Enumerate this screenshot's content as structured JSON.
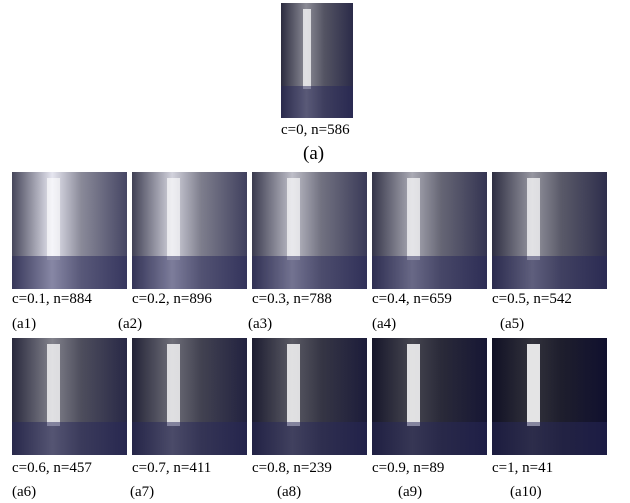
{
  "top": {
    "caption": "c=0, n=586",
    "label": "(a)"
  },
  "rows": [
    [
      {
        "caption": "c=0.1, n=884",
        "label": "(a1)"
      },
      {
        "caption": "c=0.2, n=896",
        "label": "(a2)"
      },
      {
        "caption": "c=0.3, n=788",
        "label": "(a3)"
      },
      {
        "caption": "c=0.4, n=659",
        "label": "(a4)"
      },
      {
        "caption": "c=0.5, n=542",
        "label": "(a5)"
      }
    ],
    [
      {
        "caption": "c=0.6, n=457",
        "label": "(a6)"
      },
      {
        "caption": "c=0.7, n=411",
        "label": "(a7)"
      },
      {
        "caption": "c=0.8, n=239",
        "label": "(a8)"
      },
      {
        "caption": "c=0.9, n=89",
        "label": "(a9)"
      },
      {
        "caption": "c=1, n=41",
        "label": "(a10)"
      }
    ]
  ]
}
